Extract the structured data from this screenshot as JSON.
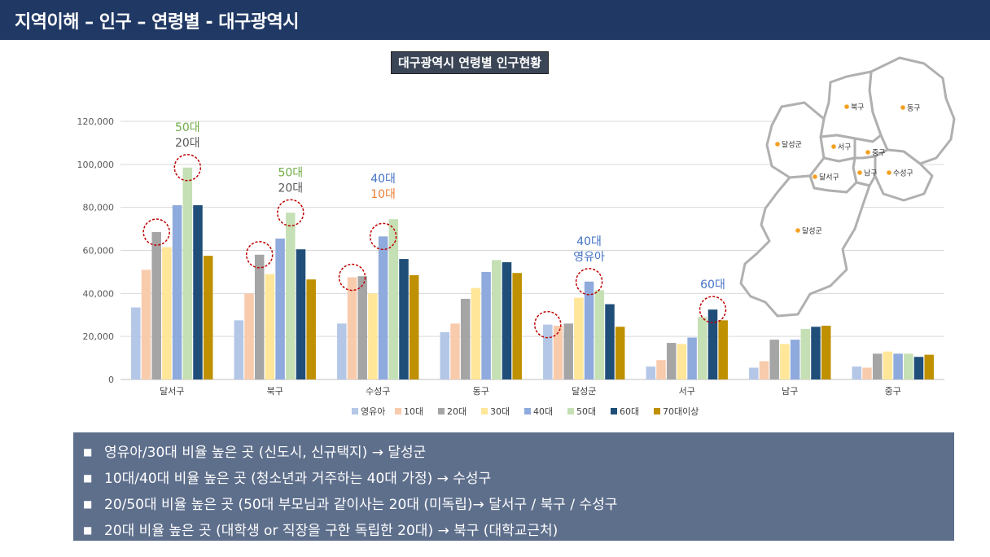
{
  "header": {
    "title": "지역이해 – 인구 – 연령별 - 대구광역시"
  },
  "chart_data": {
    "type": "bar",
    "title": "대구광역시 연령별 인구현황",
    "categories": [
      "달서구",
      "북구",
      "수성구",
      "동구",
      "달성군",
      "서구",
      "남구",
      "중구"
    ],
    "ylim": [
      0,
      120000
    ],
    "yticks": [
      "0",
      "20,000",
      "40,000",
      "60,000",
      "80,000",
      "100,000",
      "120,000"
    ],
    "grid": true,
    "legend_position": "bottom",
    "series": [
      {
        "name": "영유아",
        "color": "#b4c7e7",
        "values": [
          33500,
          27500,
          26000,
          22000,
          25500,
          6000,
          5500,
          6000
        ]
      },
      {
        "name": "10대",
        "color": "#f8cbad",
        "values": [
          51000,
          40000,
          47500,
          26000,
          25000,
          9000,
          8500,
          5500
        ]
      },
      {
        "name": "20대",
        "color": "#a5a5a5",
        "values": [
          68500,
          58000,
          48000,
          37500,
          26000,
          17000,
          18500,
          12000
        ]
      },
      {
        "name": "30대",
        "color": "#ffe699",
        "values": [
          61500,
          49000,
          40000,
          42500,
          38000,
          16500,
          16500,
          13000
        ]
      },
      {
        "name": "40대",
        "color": "#8faadc",
        "values": [
          81000,
          65500,
          66500,
          50000,
          45500,
          19500,
          18500,
          12000
        ]
      },
      {
        "name": "50대",
        "color": "#c5e0b4",
        "values": [
          98500,
          77500,
          74500,
          55500,
          41500,
          29000,
          23500,
          12000
        ]
      },
      {
        "name": "60대",
        "color": "#1f4e79",
        "values": [
          81000,
          60500,
          56000,
          54500,
          35000,
          32500,
          24500,
          10500
        ]
      },
      {
        "name": "70대이상",
        "color": "#bf9000",
        "values": [
          57500,
          46500,
          48500,
          49500,
          24500,
          27500,
          25000,
          11500
        ]
      }
    ],
    "annotations": [
      {
        "category": "달서구",
        "lines": [
          {
            "text": "50대",
            "color": "#70ad47"
          },
          {
            "text": "20대",
            "color": "#595959"
          }
        ]
      },
      {
        "category": "북구",
        "lines": [
          {
            "text": "50대",
            "color": "#70ad47"
          },
          {
            "text": "20대",
            "color": "#595959"
          }
        ]
      },
      {
        "category": "수성구",
        "lines": [
          {
            "text": "40대",
            "color": "#4472c4"
          },
          {
            "text": "10대",
            "color": "#ed7d31"
          }
        ]
      },
      {
        "category": "달성군",
        "lines": [
          {
            "text": "40대",
            "color": "#4472c4"
          },
          {
            "text": "영유아",
            "color": "#4472c4"
          }
        ]
      },
      {
        "category": "서구",
        "lines": [
          {
            "text": "60대",
            "color": "#4472c4"
          }
        ]
      }
    ],
    "highlighted_bars": [
      {
        "category": "달서구",
        "series": "20대"
      },
      {
        "category": "달서구",
        "series": "50대"
      },
      {
        "category": "북구",
        "series": "20대"
      },
      {
        "category": "북구",
        "series": "50대"
      },
      {
        "category": "수성구",
        "series": "10대"
      },
      {
        "category": "수성구",
        "series": "40대"
      },
      {
        "category": "달성군",
        "series": "영유아"
      },
      {
        "category": "달성군",
        "series": "40대"
      },
      {
        "category": "서구",
        "series": "60대"
      }
    ]
  },
  "map": {
    "districts": [
      {
        "name": "북구",
        "key": "bukgu"
      },
      {
        "name": "동구",
        "key": "donggu"
      },
      {
        "name": "달성군",
        "key": "dalseong_north"
      },
      {
        "name": "서구",
        "key": "seogu"
      },
      {
        "name": "중구",
        "key": "junggu"
      },
      {
        "name": "달서구",
        "key": "dalseogu"
      },
      {
        "name": "남구",
        "key": "namgu"
      },
      {
        "name": "수성구",
        "key": "suseonggu"
      },
      {
        "name": "달성군",
        "key": "dalseong_south"
      }
    ],
    "marker_color": "#f4a020"
  },
  "summary": {
    "bullets": [
      "영유아/30대 비율 높은 곳 (신도시, 신규택지) → 달성군",
      "10대/40대 비율 높은 곳 (청소년과 거주하는 40대 가정) → 수성구",
      "20/50대 비율 높은 곳 (50대 부모님과 같이사는 20대 (미독립)→ 달서구 / 북구 / 수성구",
      "20대 비율 높은 곳  (대학생 or 직장을 구한 독립한 20대) → 북구 (대학교근처)"
    ]
  }
}
